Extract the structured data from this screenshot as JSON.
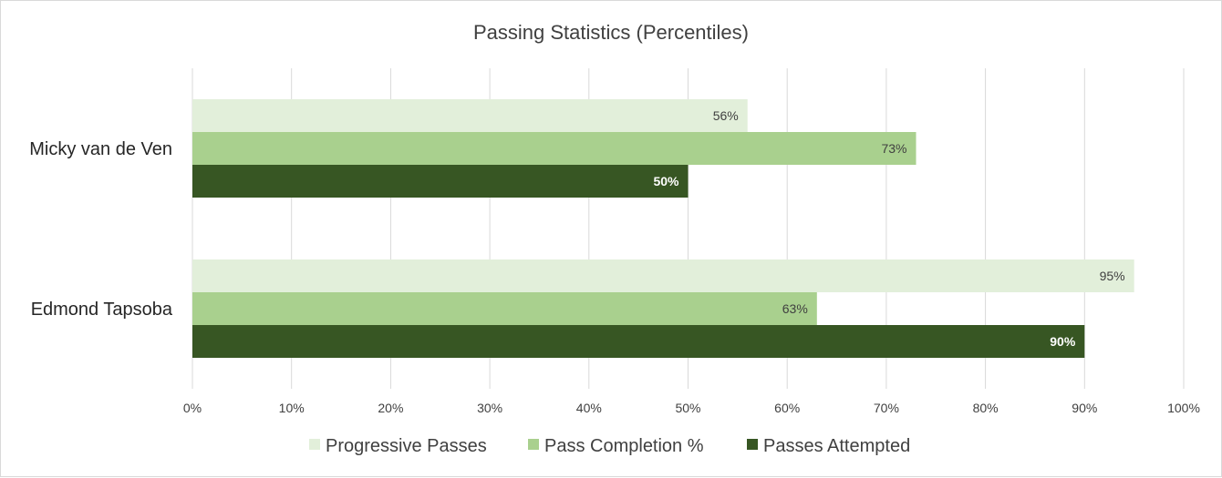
{
  "chart_data": {
    "type": "bar",
    "orientation": "horizontal",
    "title": "Passing Statistics (Percentiles)",
    "categories": [
      "Micky van de Ven",
      "Edmond Tapsoba"
    ],
    "series": [
      {
        "name": "Progressive Passes",
        "values": [
          56,
          95
        ],
        "labels": [
          "56%",
          "95%"
        ],
        "color": "#e2efda",
        "label_color": "#404040",
        "label_bold": false
      },
      {
        "name": "Pass Completion %",
        "values": [
          73,
          63
        ],
        "labels": [
          "73%",
          "63%"
        ],
        "color": "#a9d08e",
        "label_color": "#404040",
        "label_bold": false
      },
      {
        "name": "Passes Attempted",
        "values": [
          50,
          90
        ],
        "labels": [
          "50%",
          "90%"
        ],
        "color": "#375623",
        "label_color": "#ffffff",
        "label_bold": true
      }
    ],
    "xlim": [
      0,
      100
    ],
    "x_ticks": [
      "0%",
      "10%",
      "20%",
      "30%",
      "40%",
      "50%",
      "60%",
      "70%",
      "80%",
      "90%",
      "100%"
    ],
    "grid": true,
    "legend_position": "bottom"
  }
}
